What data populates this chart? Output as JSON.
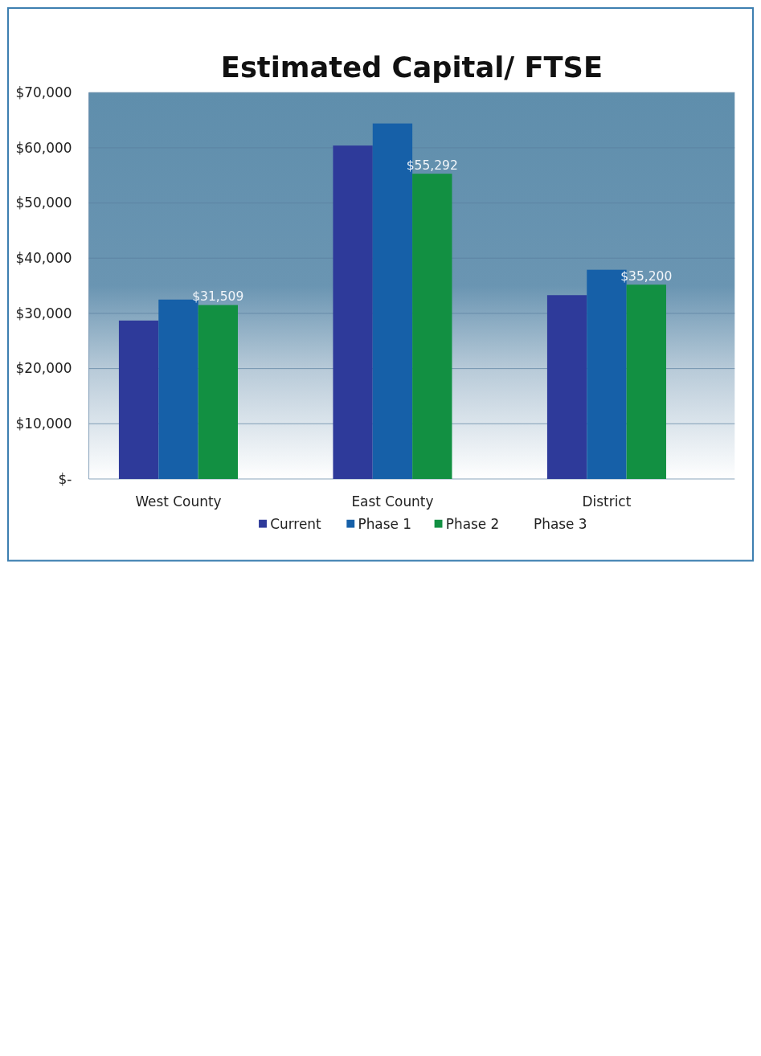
{
  "chart_data": {
    "type": "bar",
    "title": "Estimated Capital/ FTSE",
    "categories": [
      "West County",
      "East County",
      "District"
    ],
    "series": [
      {
        "name": "Current",
        "color": "#2e3a9a",
        "values": [
          28700,
          60400,
          33300
        ]
      },
      {
        "name": "Phase 1",
        "color": "#1660a8",
        "values": [
          32500,
          64400,
          37900
        ]
      },
      {
        "name": "Phase 2",
        "color": "#129042",
        "values": [
          31509,
          55292,
          35200
        ],
        "value_labels": [
          "$31,509",
          "$55,292",
          "$35,200"
        ]
      },
      {
        "name": "Phase 3",
        "values": [
          null,
          null,
          null
        ]
      }
    ],
    "ylim": [
      0,
      70000
    ],
    "yticks": [
      {
        "value": 0,
        "label": "$-"
      },
      {
        "value": 10000,
        "label": "$10,000"
      },
      {
        "value": 20000,
        "label": "$20,000"
      },
      {
        "value": 30000,
        "label": "$30,000"
      },
      {
        "value": 40000,
        "label": "$40,000"
      },
      {
        "value": 50000,
        "label": "$50,000"
      },
      {
        "value": 60000,
        "label": "$60,000"
      },
      {
        "value": 70000,
        "label": "$70,000"
      }
    ],
    "grid": "y",
    "legend": "bottom"
  }
}
